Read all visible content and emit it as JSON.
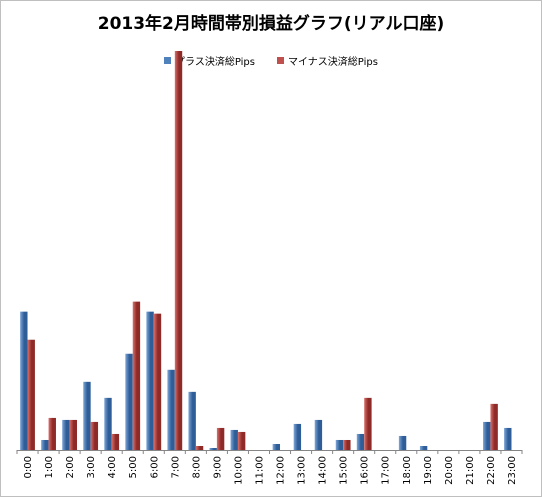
{
  "chart_data": {
    "type": "bar",
    "title": "2013年2月時間帯別損益グラフ(リアル口座)",
    "xlabel": "",
    "ylabel": "",
    "categories": [
      "0:00",
      "1:00",
      "2:00",
      "3:00",
      "4:00",
      "5:00",
      "6:00",
      "7:00",
      "8:00",
      "9:00",
      "10:00",
      "11:00",
      "12:00",
      "13:00",
      "14:00",
      "15:00",
      "16:00",
      "17:00",
      "18:00",
      "19:00",
      "20:00",
      "21:00",
      "22:00",
      "23:00"
    ],
    "series": [
      {
        "name": "プラス決済総Pips",
        "color": "#4f81bd",
        "values": [
          69,
          5,
          15,
          34,
          26,
          48,
          69,
          40,
          29,
          1,
          10,
          0,
          3,
          13,
          15,
          5,
          8,
          0,
          7,
          2,
          0,
          0,
          14,
          11
        ]
      },
      {
        "name": "マイナス決済総Pips",
        "color": "#c0504d",
        "values": [
          55,
          16,
          15,
          14,
          8,
          74,
          68,
          199,
          2,
          11,
          9,
          0,
          0,
          0,
          0,
          5,
          26,
          0,
          0,
          0,
          0,
          0,
          23,
          0
        ]
      }
    ],
    "ylim": [
      0,
      200
    ],
    "grid": false,
    "legend_position": "top"
  }
}
